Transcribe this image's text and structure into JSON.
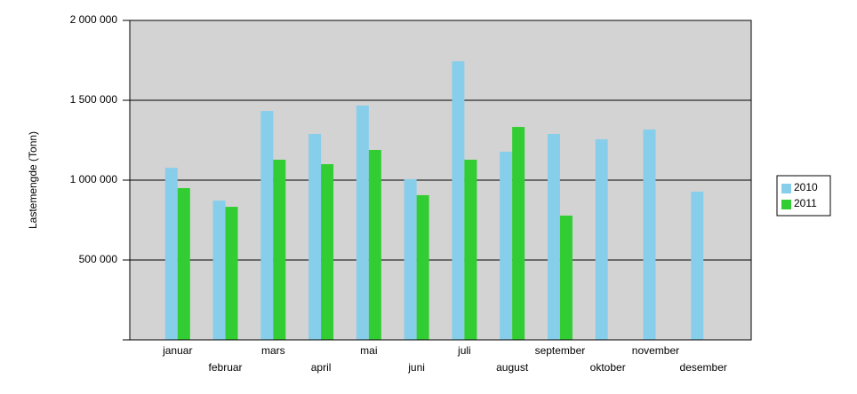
{
  "chart_data": {
    "type": "bar",
    "y_label": "Lastemengde (Tonn)",
    "categories": [
      "januar",
      "februar",
      "mars",
      "april",
      "mai",
      "juni",
      "juli",
      "august",
      "september",
      "oktober",
      "november",
      "desember"
    ],
    "series": [
      {
        "name": "2010",
        "color": "#87ceeb",
        "values": [
          1077000,
          872000,
          1433000,
          1289000,
          1467000,
          1006000,
          1744000,
          1178000,
          1289000,
          1256000,
          1317000,
          928000
        ]
      },
      {
        "name": "2011",
        "color": "#32cd32",
        "values": [
          950000,
          833000,
          1128000,
          1100000,
          1189000,
          906000,
          1128000,
          1333000,
          778000,
          null,
          null,
          null
        ]
      }
    ],
    "ylim": [
      0,
      2000000
    ],
    "yticks": [
      {
        "value": 500000,
        "label": "500 000"
      },
      {
        "value": 1000000,
        "label": "1 000 000"
      },
      {
        "value": 1500000,
        "label": "1 500 000"
      },
      {
        "value": 2000000,
        "label": "2 000 000"
      }
    ],
    "grid": true,
    "legend": "right"
  }
}
